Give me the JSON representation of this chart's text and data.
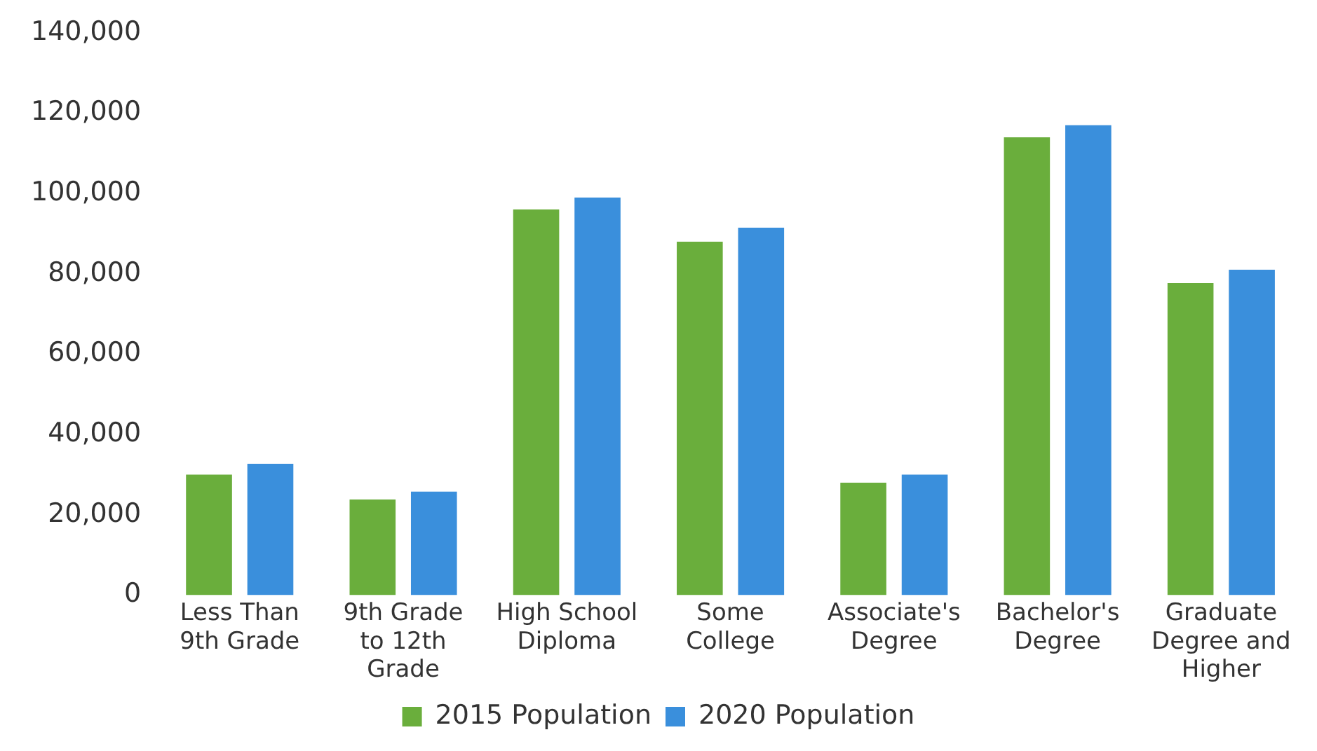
{
  "chart_data": {
    "type": "bar",
    "categories": [
      "Less Than 9th Grade",
      "9th Grade to 12th Grade",
      "High School Diploma",
      "Some College",
      "Associate's Degree",
      "Bachelor's Degree",
      "Graduate Degree and Higher"
    ],
    "series": [
      {
        "name": "2015 Population",
        "color": "#6aae3c",
        "values": [
          30000,
          23800,
          96000,
          88000,
          28000,
          114000,
          77700
        ]
      },
      {
        "name": "2020 Population",
        "color": "#3a8fdc",
        "values": [
          32700,
          25800,
          99000,
          91500,
          30000,
          117000,
          81000
        ]
      }
    ],
    "ylim": [
      0,
      140000
    ],
    "yticks": [
      0,
      {
        "value": 20000,
        "label": "20,000"
      },
      {
        "value": 40000,
        "label": "40,000"
      },
      {
        "value": 60000,
        "label": "60,000"
      },
      {
        "value": 80000,
        "label": "80,000"
      },
      {
        "value": 100000,
        "label": "100,000"
      },
      {
        "value": 120000,
        "label": "120,000"
      },
      {
        "value": 140000,
        "label": "140,000"
      }
    ],
    "grid": false,
    "legend": "bottom"
  }
}
